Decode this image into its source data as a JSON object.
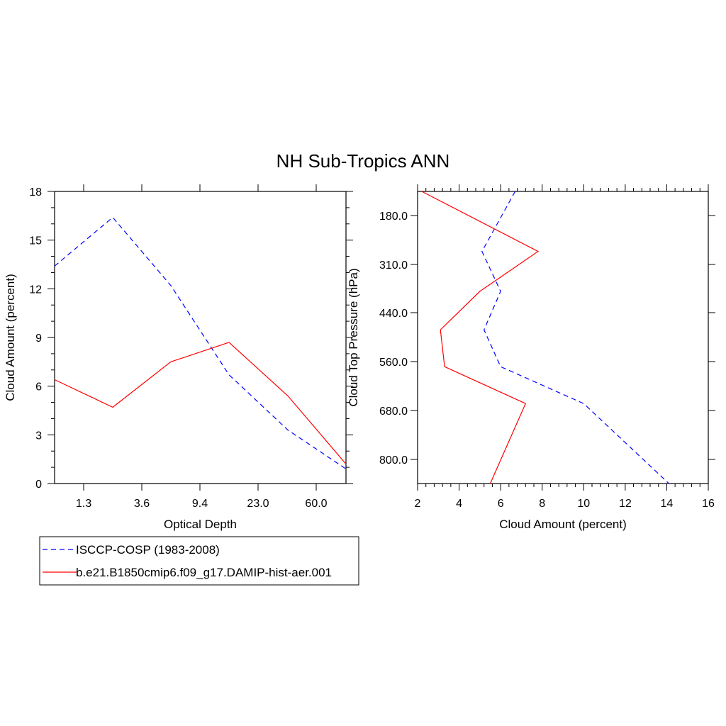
{
  "chart_title": "NH Sub-Tropics ANN",
  "legend": {
    "entries": [
      {
        "label": "ISCCP-COSP (1983-2008)",
        "color": "#0000ff",
        "dash": "dashed"
      },
      {
        "label": "b.e21.B1850cmip6.f09_g17.DAMIP-hist-aer.001",
        "color": "#ff0000",
        "dash": "solid"
      }
    ]
  },
  "chart_data": [
    {
      "type": "line",
      "xlabel": "Optical Depth",
      "ylabel": "Cloud Amount (percent)",
      "x": [
        0.3,
        1.3,
        2.45,
        3.6,
        6.5,
        9.4,
        16.2,
        23.0,
        41.5,
        60.0,
        80.0
      ],
      "xtick_labels": [
        "1.3",
        "3.6",
        "9.4",
        "23.0",
        "60.0"
      ],
      "ylim": [
        0,
        18
      ],
      "yticks": [
        0,
        3,
        6,
        9,
        12,
        15,
        18
      ],
      "series": [
        {
          "name": "ISCCP-COSP (1983-2008)",
          "color": "#0000ff",
          "x": [
            "0.3",
            "2.45",
            "6.5",
            "16.2",
            "41.5",
            "80.0"
          ],
          "values": [
            13.4,
            16.4,
            12.2,
            6.7,
            3.3,
            0.9
          ]
        },
        {
          "name": "b.e21.B1850cmip6.f09_g17.DAMIP-hist-aer.001",
          "color": "#ff0000",
          "x": [
            "0.3",
            "2.45",
            "6.5",
            "16.2",
            "41.5",
            "80.0"
          ],
          "values": [
            6.4,
            4.7,
            7.5,
            8.7,
            5.4,
            1.2
          ]
        }
      ]
    },
    {
      "type": "line",
      "xlabel": "Cloud Amount (percent)",
      "ylabel": "Cloud Top Pressure (hPa)",
      "xlim": [
        2,
        16
      ],
      "xticks": [
        2,
        4,
        6,
        8,
        10,
        12,
        14,
        16
      ],
      "ytick_labels": [
        "180.0",
        "310.0",
        "440.0",
        "560.0",
        "680.0",
        "800.0"
      ],
      "ylim_hpa": [
        50,
        1000
      ],
      "series": [
        {
          "name": "ISCCP-COSP (1983-2008)",
          "color": "#0000ff",
          "pressure": [
            50,
            245,
            375,
            500,
            620,
            740,
            1000
          ],
          "values": [
            6.7,
            5.1,
            6.0,
            5.2,
            6.0,
            10.0,
            14.1
          ]
        },
        {
          "name": "b.e21.B1850cmip6.f09_g17.DAMIP-hist-aer.001",
          "color": "#ff0000",
          "pressure": [
            50,
            245,
            375,
            500,
            620,
            740,
            1000
          ],
          "values": [
            2.2,
            7.8,
            5.0,
            3.1,
            3.3,
            7.2,
            5.5
          ]
        }
      ]
    }
  ]
}
